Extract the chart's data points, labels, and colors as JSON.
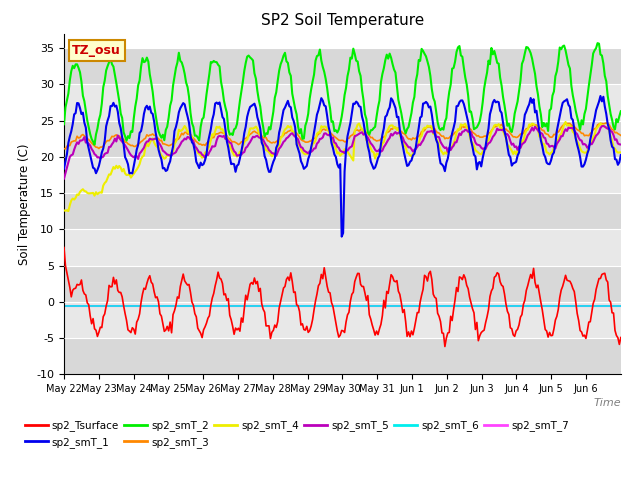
{
  "title": "SP2 Soil Temperature",
  "ylabel": "Soil Temperature (C)",
  "xlabel": "Time",
  "ylim": [
    -10,
    37
  ],
  "tz_label": "TZ_osu",
  "series_colors": {
    "sp2_Tsurface": "#ff0000",
    "sp2_smT_1": "#0000ee",
    "sp2_smT_2": "#00ee00",
    "sp2_smT_3": "#ff8800",
    "sp2_smT_4": "#eeee00",
    "sp2_smT_5": "#bb00bb",
    "sp2_smT_6": "#00eeee",
    "sp2_smT_7": "#ff44ff"
  },
  "yticks": [
    -10,
    -5,
    0,
    5,
    10,
    15,
    20,
    25,
    30,
    35
  ],
  "tick_labels": [
    "May 22",
    "May 23",
    "May 24",
    "May 25",
    "May 26",
    "May 27",
    "May 28",
    "May 29",
    "May 30",
    "May 31",
    "Jun 1",
    "Jun 2",
    "Jun 3",
    "Jun 4",
    "Jun 5",
    "Jun 6"
  ],
  "bg_bands": [
    [
      35,
      30,
      "#d8d8d8"
    ],
    [
      30,
      25,
      "#e8e8e8"
    ],
    [
      25,
      20,
      "#d8d8d8"
    ],
    [
      20,
      15,
      "#e8e8e8"
    ],
    [
      15,
      10,
      "#d8d8d8"
    ],
    [
      10,
      5,
      "#e8e8e8"
    ],
    [
      5,
      0,
      "#d8d8d8"
    ],
    [
      0,
      -5,
      "#e8e8e8"
    ],
    [
      -5,
      -10,
      "#d8d8d8"
    ]
  ]
}
